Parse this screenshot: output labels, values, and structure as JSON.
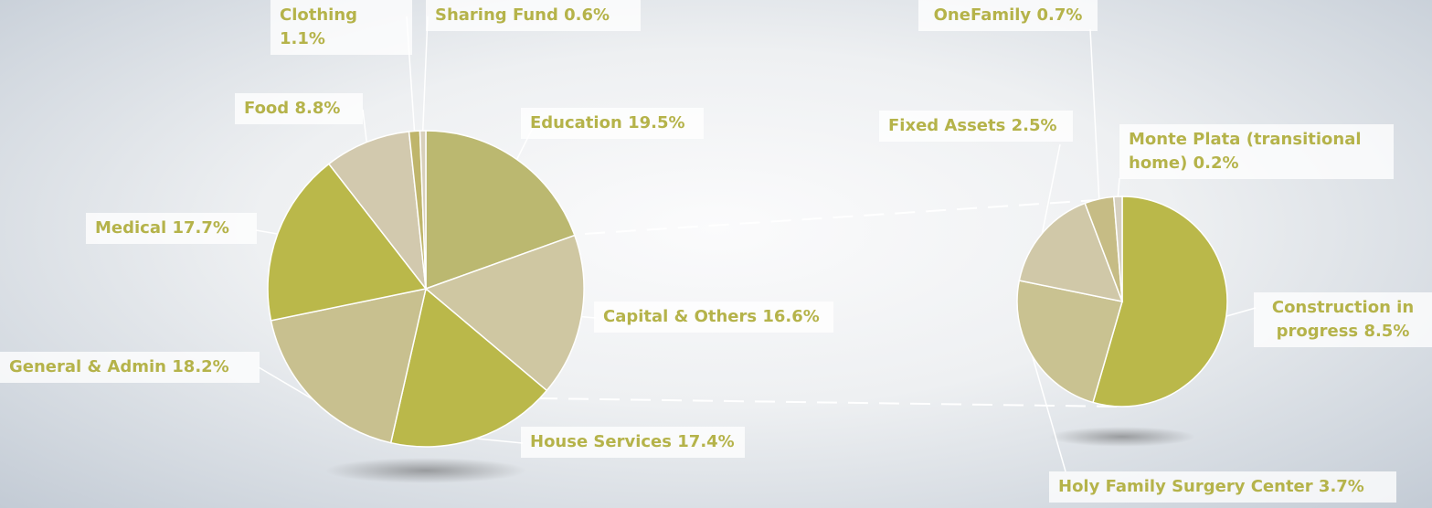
{
  "chart_data": [
    {
      "type": "pie",
      "categories": [
        "Education",
        "Capital & Others",
        "House Services",
        "General & Admin",
        "Medical",
        "Food",
        "Clothing",
        "Sharing Fund"
      ],
      "values": [
        19.5,
        16.6,
        17.4,
        18.2,
        17.7,
        8.8,
        1.1,
        0.6
      ],
      "value_labels": [
        "19.5%",
        "16.6%",
        "17.4%",
        "18.2%",
        "17.7%",
        "8.8%",
        "1.1%",
        "0.6%"
      ],
      "colors": [
        "#bbb870",
        "#cfc7a2",
        "#bab84a",
        "#c8c08f",
        "#bab84a",
        "#d2c9ae",
        "#bfb56b",
        "#d8d0bb"
      ]
    },
    {
      "type": "pie",
      "categories": [
        "Construction in progress",
        "Holy Family Surgery Center",
        "Fixed Assets",
        "OneFamily",
        "Monte Plata (transitional home)"
      ],
      "values": [
        8.5,
        3.7,
        2.5,
        0.7,
        0.2
      ],
      "value_labels": [
        "8.5%",
        "3.7%",
        "2.5%",
        "0.7%",
        "0.2%"
      ],
      "colors": [
        "#bab84a",
        "#c9c291",
        "#d0c8a8",
        "#c6bc85",
        "#d6d0c0"
      ]
    }
  ]
}
